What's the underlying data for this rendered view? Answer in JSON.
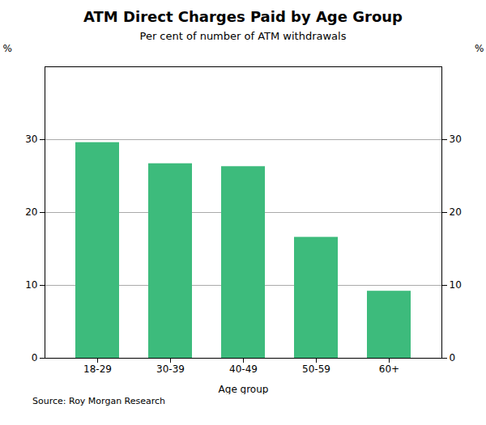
{
  "chart_data": {
    "type": "bar",
    "title": "ATM Direct Charges Paid by Age Group",
    "subtitle": "Per cent of number of ATM withdrawals",
    "categories": [
      "18-29",
      "30-39",
      "40-49",
      "50-59",
      "60+"
    ],
    "values": [
      29.6,
      26.7,
      26.3,
      16.6,
      9.2
    ],
    "color": "#3dbb7c",
    "xlabel": "Age group",
    "ylabel": "%",
    "y2label": "%",
    "ylim": [
      0,
      40
    ],
    "yticks": [
      0,
      10,
      20,
      30
    ],
    "y2lim": [
      0,
      40
    ],
    "y2ticks": [
      0,
      10,
      20,
      30
    ],
    "source": "Source: Roy Morgan Research",
    "grid": true
  }
}
